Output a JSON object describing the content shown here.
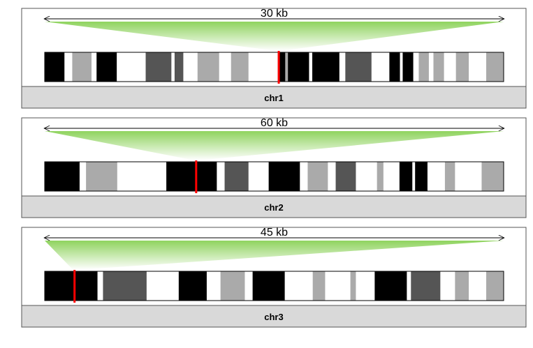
{
  "panels": [
    {
      "chromosome": "chr1",
      "scale_label": "30 kb",
      "marker": 0.51,
      "zoom_range": [
        0.0,
        1.0
      ],
      "bands": [
        [
          0.0,
          0.043,
          "k"
        ],
        [
          0.043,
          0.06,
          "w"
        ],
        [
          0.06,
          0.102,
          "g"
        ],
        [
          0.102,
          0.113,
          "w"
        ],
        [
          0.113,
          0.157,
          "k"
        ],
        [
          0.157,
          0.22,
          "w"
        ],
        [
          0.22,
          0.276,
          "d"
        ],
        [
          0.276,
          0.283,
          "w"
        ],
        [
          0.283,
          0.302,
          "d"
        ],
        [
          0.302,
          0.333,
          "w"
        ],
        [
          0.333,
          0.38,
          "g"
        ],
        [
          0.38,
          0.406,
          "w"
        ],
        [
          0.406,
          0.444,
          "g"
        ],
        [
          0.444,
          0.508,
          "w"
        ],
        [
          0.508,
          0.524,
          "k"
        ],
        [
          0.524,
          0.53,
          "g"
        ],
        [
          0.53,
          0.576,
          "k"
        ],
        [
          0.576,
          0.583,
          "w"
        ],
        [
          0.583,
          0.642,
          "k"
        ],
        [
          0.642,
          0.655,
          "w"
        ],
        [
          0.655,
          0.712,
          "d"
        ],
        [
          0.712,
          0.751,
          "w"
        ],
        [
          0.751,
          0.774,
          "k"
        ],
        [
          0.774,
          0.78,
          "w"
        ],
        [
          0.78,
          0.803,
          "k"
        ],
        [
          0.803,
          0.815,
          "w"
        ],
        [
          0.815,
          0.837,
          "g"
        ],
        [
          0.837,
          0.847,
          "w"
        ],
        [
          0.847,
          0.87,
          "g"
        ],
        [
          0.87,
          0.896,
          "w"
        ],
        [
          0.896,
          0.924,
          "g"
        ],
        [
          0.924,
          0.962,
          "w"
        ],
        [
          0.962,
          1.0,
          "g"
        ]
      ]
    },
    {
      "chromosome": "chr2",
      "scale_label": "60 kb",
      "marker": 0.33,
      "zoom_range": [
        0.0,
        1.0
      ],
      "bands": [
        [
          0.0,
          0.076,
          "k"
        ],
        [
          0.076,
          0.09,
          "w"
        ],
        [
          0.09,
          0.158,
          "g"
        ],
        [
          0.158,
          0.265,
          "w"
        ],
        [
          0.265,
          0.375,
          "k"
        ],
        [
          0.375,
          0.392,
          "w"
        ],
        [
          0.392,
          0.444,
          "d"
        ],
        [
          0.444,
          0.488,
          "w"
        ],
        [
          0.488,
          0.556,
          "k"
        ],
        [
          0.556,
          0.573,
          "w"
        ],
        [
          0.573,
          0.617,
          "g"
        ],
        [
          0.617,
          0.634,
          "w"
        ],
        [
          0.634,
          0.678,
          "d"
        ],
        [
          0.678,
          0.724,
          "w"
        ],
        [
          0.724,
          0.738,
          "g"
        ],
        [
          0.738,
          0.773,
          "w"
        ],
        [
          0.773,
          0.801,
          "k"
        ],
        [
          0.801,
          0.807,
          "w"
        ],
        [
          0.807,
          0.834,
          "k"
        ],
        [
          0.834,
          0.872,
          "w"
        ],
        [
          0.872,
          0.894,
          "g"
        ],
        [
          0.894,
          0.952,
          "w"
        ],
        [
          0.952,
          1.0,
          "g"
        ]
      ]
    },
    {
      "chromosome": "chr3",
      "scale_label": "45 kb",
      "marker": 0.065,
      "zoom_range": [
        0.0,
        1.0
      ],
      "bands": [
        [
          0.0,
          0.115,
          "k"
        ],
        [
          0.115,
          0.127,
          "w"
        ],
        [
          0.127,
          0.222,
          "d"
        ],
        [
          0.222,
          0.292,
          "w"
        ],
        [
          0.292,
          0.353,
          "k"
        ],
        [
          0.353,
          0.383,
          "w"
        ],
        [
          0.383,
          0.436,
          "g"
        ],
        [
          0.436,
          0.453,
          "w"
        ],
        [
          0.453,
          0.523,
          "k"
        ],
        [
          0.523,
          0.584,
          "w"
        ],
        [
          0.584,
          0.611,
          "g"
        ],
        [
          0.611,
          0.666,
          "w"
        ],
        [
          0.666,
          0.678,
          "g"
        ],
        [
          0.678,
          0.719,
          "w"
        ],
        [
          0.719,
          0.789,
          "k"
        ],
        [
          0.789,
          0.798,
          "w"
        ],
        [
          0.798,
          0.862,
          "d"
        ],
        [
          0.862,
          0.894,
          "w"
        ],
        [
          0.894,
          0.924,
          "g"
        ],
        [
          0.924,
          0.962,
          "w"
        ],
        [
          0.962,
          1.0,
          "g"
        ]
      ]
    }
  ],
  "colors": {
    "k": "#000000",
    "d": "#555555",
    "g": "#aaaaaa",
    "w": "#ffffff",
    "marker": "#ff0000",
    "zoom_top": "#8fd35e",
    "zoom_bottom": "#ffffff",
    "title_bar": "#d9d9d9"
  }
}
